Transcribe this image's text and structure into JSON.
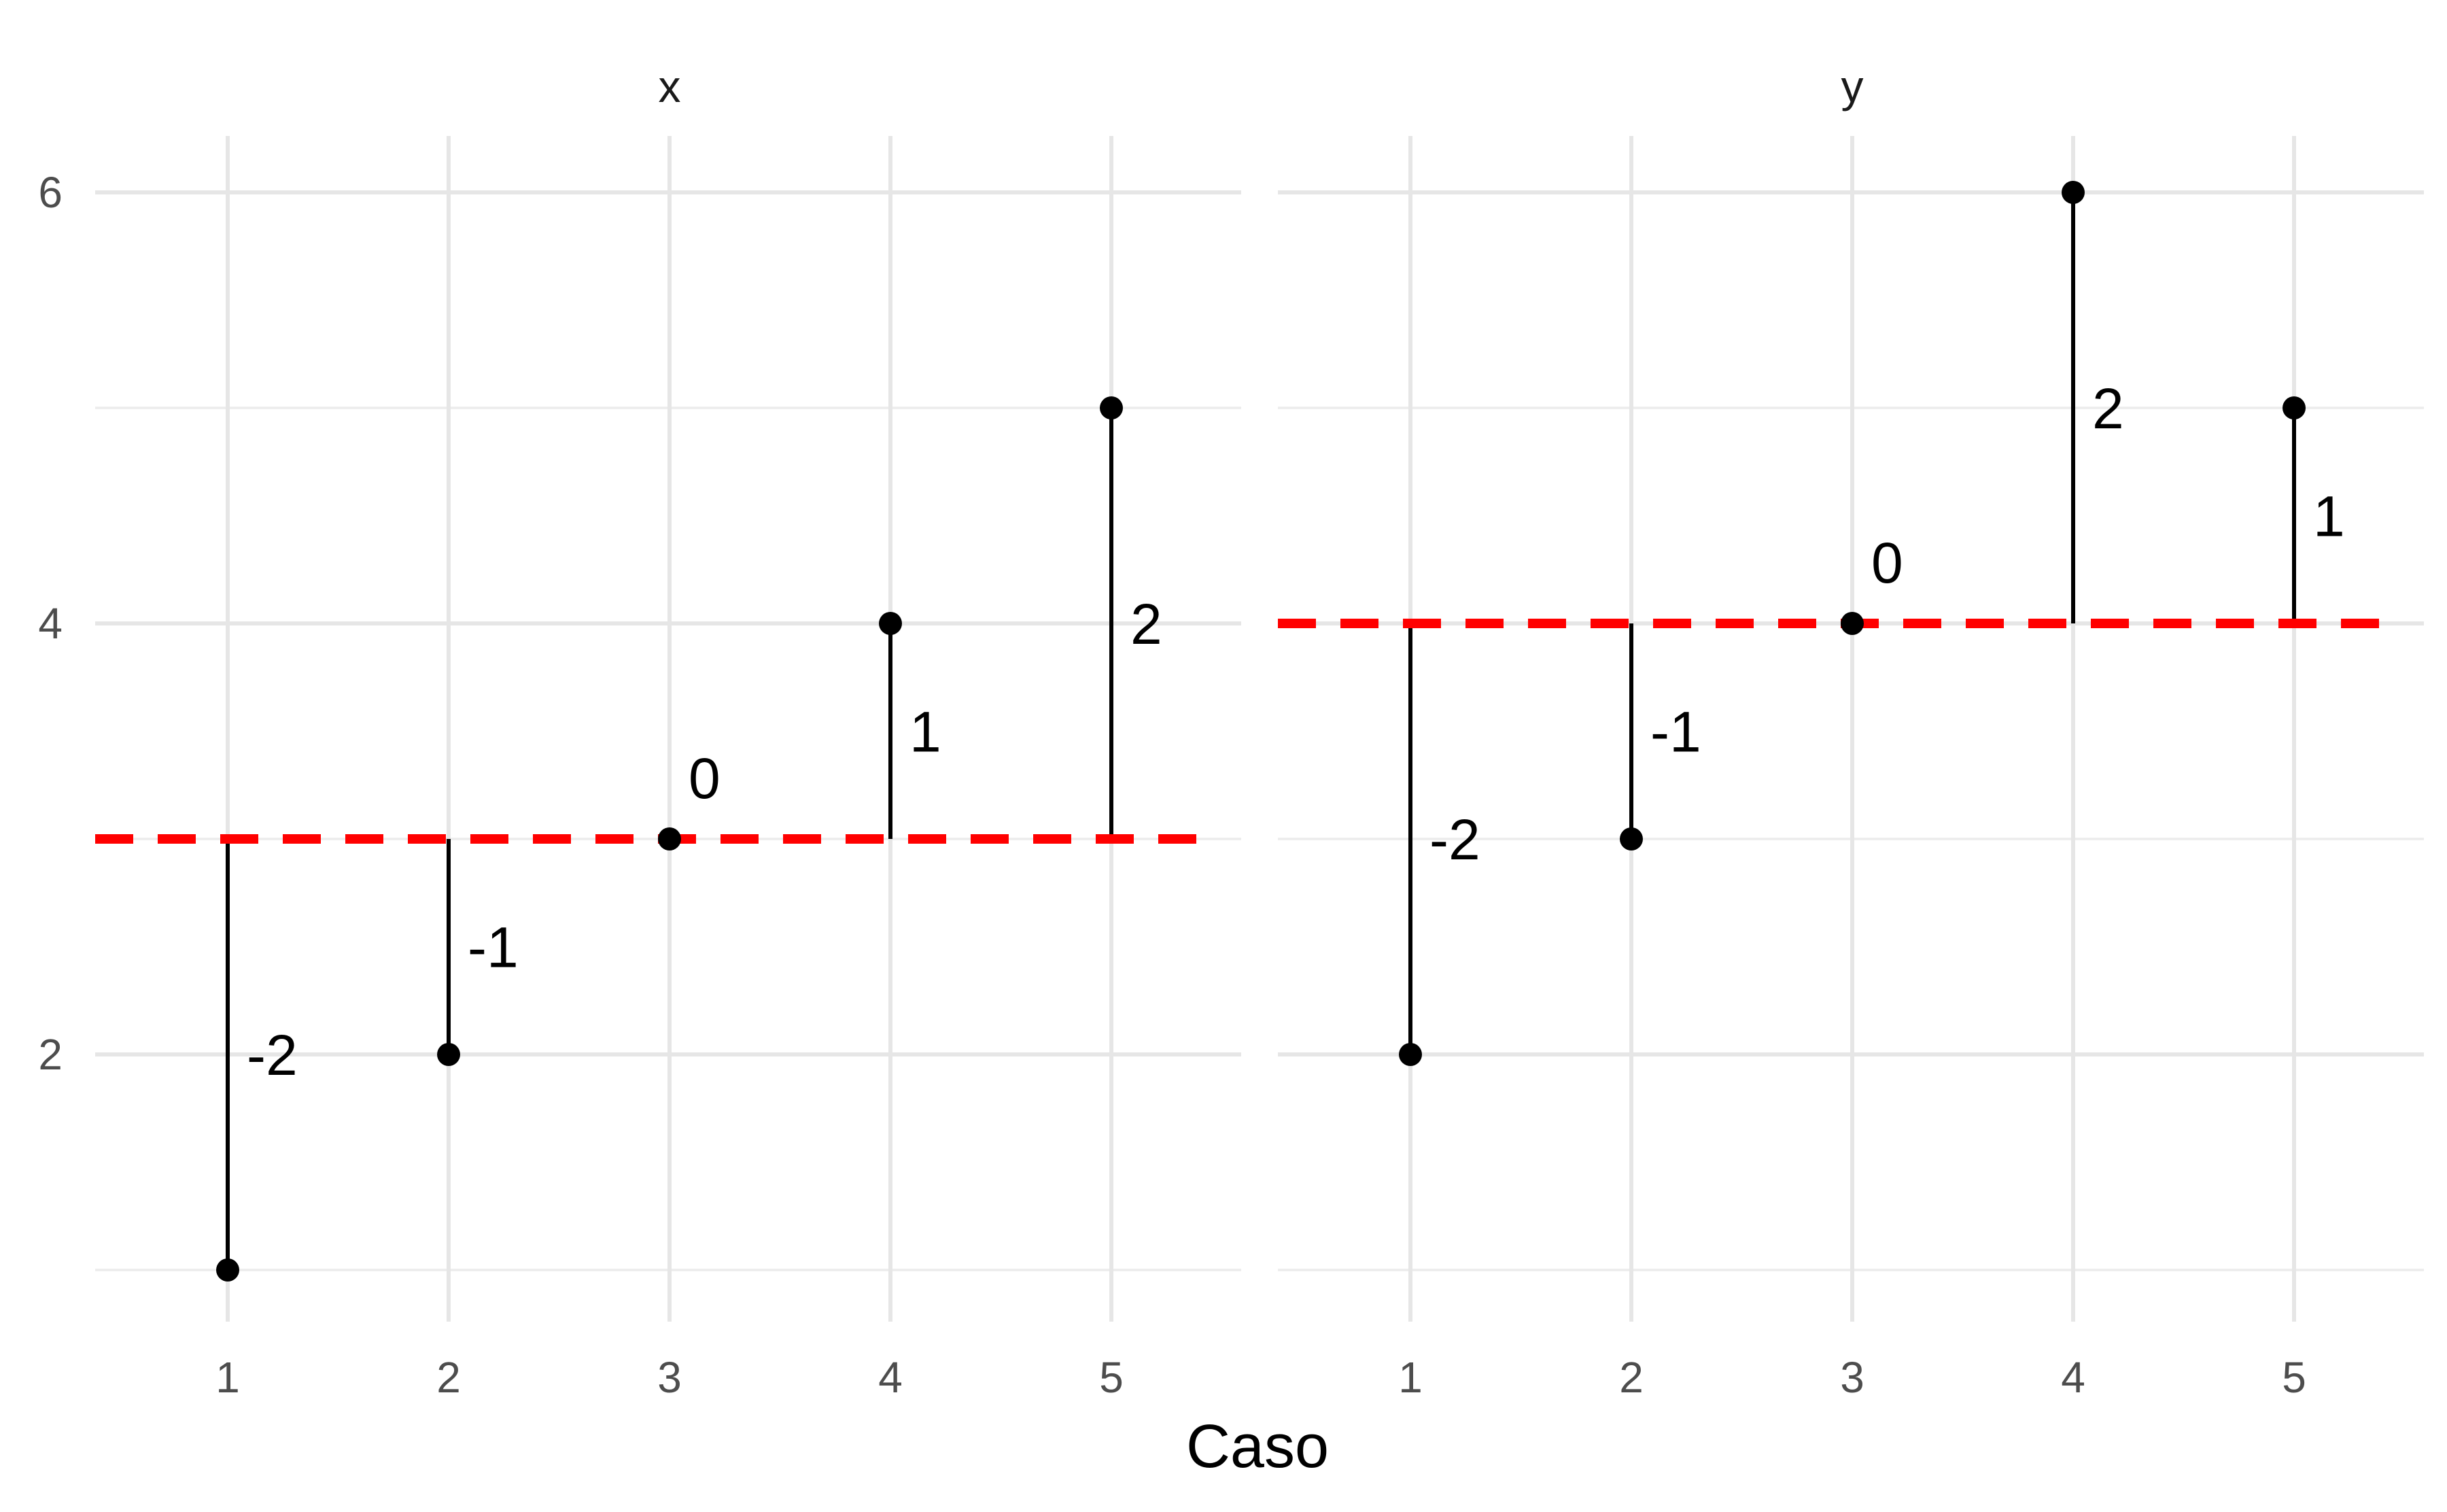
{
  "chart_data": {
    "type": "scatter",
    "xlabel": "Caso",
    "ylabel": "",
    "x_ticks": [
      1,
      2,
      3,
      4,
      5
    ],
    "y_ticks": [
      2,
      4,
      6
    ],
    "ylim": [
      0.75,
      6.5
    ],
    "grid": true,
    "colors": {
      "points": "#000000",
      "segments": "#000000",
      "mean_line": "#ff0000",
      "grid": "#e6e6e6"
    },
    "panels": [
      {
        "strip": "x",
        "mean": 3,
        "points": [
          {
            "x": 1,
            "y": 1,
            "label": "-2"
          },
          {
            "x": 2,
            "y": 2,
            "label": "-1"
          },
          {
            "x": 3,
            "y": 3,
            "label": "0"
          },
          {
            "x": 4,
            "y": 4,
            "label": "1"
          },
          {
            "x": 5,
            "y": 5,
            "label": "2"
          }
        ]
      },
      {
        "strip": "y",
        "mean": 4,
        "points": [
          {
            "x": 1,
            "y": 2,
            "label": "-2"
          },
          {
            "x": 2,
            "y": 3,
            "label": "-1"
          },
          {
            "x": 3,
            "y": 4,
            "label": "0"
          },
          {
            "x": 4,
            "y": 6,
            "label": "2"
          },
          {
            "x": 5,
            "y": 5,
            "label": "1"
          }
        ]
      }
    ]
  }
}
